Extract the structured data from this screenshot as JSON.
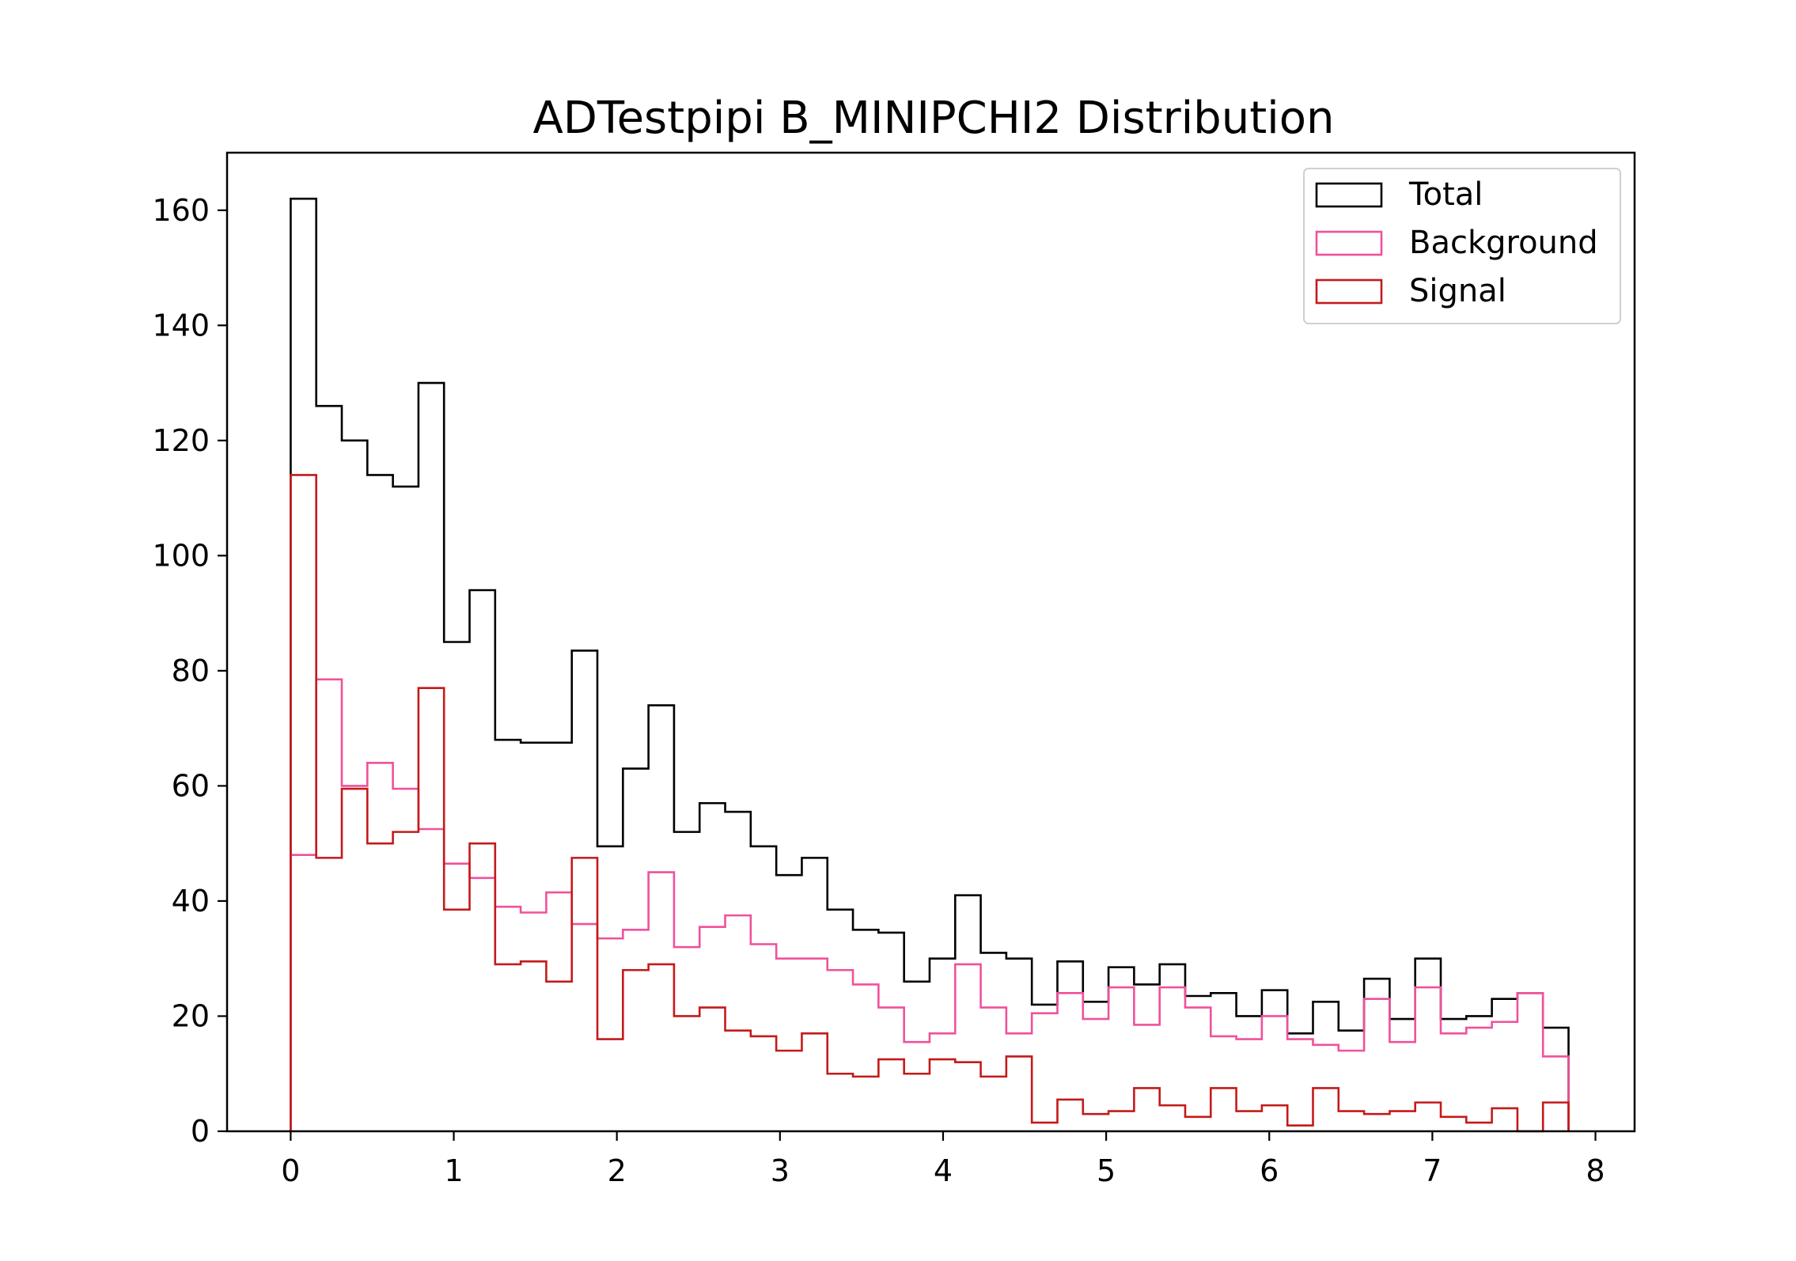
{
  "chart_data": {
    "type": "histogram",
    "title": "ADTestpipi B_MINIPCHI2 Distribution",
    "xlabel": "",
    "ylabel": "",
    "xlim": [
      -0.39,
      8.24
    ],
    "ylim": [
      0,
      170
    ],
    "xticks": [
      0,
      1,
      2,
      3,
      4,
      5,
      6,
      7,
      8
    ],
    "yticks": [
      0,
      20,
      40,
      60,
      80,
      100,
      120,
      140,
      160
    ],
    "grid": false,
    "legend_position": "upper right",
    "bins": {
      "start": 0.0,
      "width": 0.1567,
      "count": 50
    },
    "series": [
      {
        "name": "Total",
        "color": "#000000",
        "values": [
          162,
          126,
          120,
          114,
          112,
          130,
          85,
          94,
          68,
          67.5,
          67.5,
          83.5,
          49.5,
          63,
          74,
          52,
          57,
          55.5,
          49.5,
          44.5,
          47.5,
          38.5,
          35,
          34.5,
          26,
          30,
          41,
          31,
          30,
          22,
          29.5,
          22.5,
          28.5,
          25.5,
          29,
          23.5,
          24,
          20,
          24.5,
          17,
          22.5,
          17.5,
          26.5,
          19.5,
          30,
          19.5,
          20,
          23,
          24,
          18
        ]
      },
      {
        "name": "Background",
        "color": "#f0519b",
        "values": [
          48,
          78.5,
          60,
          64,
          59.5,
          52.5,
          46.5,
          44,
          39,
          38,
          41.5,
          36,
          33.5,
          35,
          45,
          32,
          35.5,
          37.5,
          32.5,
          30,
          30,
          28,
          25.5,
          21.5,
          15.5,
          17,
          29,
          21.5,
          17,
          20.5,
          24,
          19.5,
          25,
          18.5,
          25,
          21.5,
          16.5,
          16,
          20,
          16,
          15,
          14,
          23,
          15.5,
          25,
          17,
          18,
          19,
          24,
          13
        ]
      },
      {
        "name": "Signal",
        "color": "#c41a1a",
        "values": [
          114,
          47.5,
          59.5,
          50,
          52,
          77,
          38.5,
          50,
          29,
          29.5,
          26,
          47.5,
          16,
          28,
          29,
          20,
          21.5,
          17.5,
          16.5,
          14,
          17,
          10,
          9.5,
          12.5,
          10,
          12.5,
          12,
          9.5,
          13,
          1.5,
          5.5,
          3,
          3.5,
          7.5,
          4.5,
          2.5,
          7.5,
          3.5,
          4.5,
          1,
          7.5,
          3.5,
          3,
          3.5,
          5,
          2.5,
          1.5,
          4,
          0,
          5
        ]
      }
    ]
  }
}
